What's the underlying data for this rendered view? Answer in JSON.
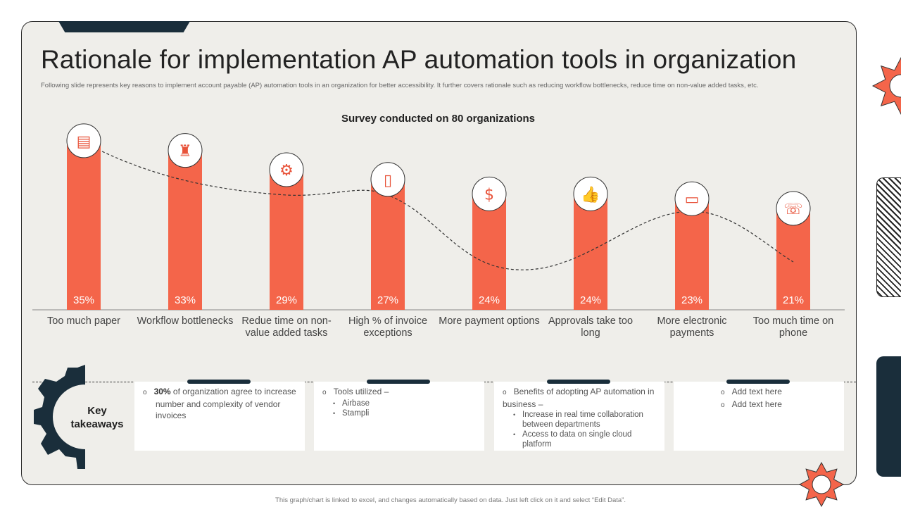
{
  "title": "Rationale for implementation AP automation tools in organization",
  "subtitle": "Following slide represents key reasons to implement  account payable (AP) automation tools in  an organization for better accessibility. It further covers rationale such as reducing workflow bottlenecks, reduce time on non-value added tasks, etc.",
  "chart_data": {
    "type": "bar",
    "title": "Survey conducted on 80 organizations",
    "categories": [
      "Too much paper",
      "Workflow bottlenecks",
      "Redue time on non-value added tasks",
      "High % of invoice exceptions",
      "More payment options",
      "Approvals take too long",
      "More electronic payments",
      "Too much time on phone"
    ],
    "values": [
      35,
      33,
      29,
      27,
      24,
      24,
      23,
      21
    ],
    "value_labels": [
      "35%",
      "33%",
      "29%",
      "27%",
      "24%",
      "24%",
      "23%",
      "21%"
    ],
    "unit": "%",
    "bar_color": "#f4654a",
    "icons": [
      "paper-stack-icon",
      "bottle-icon",
      "gear-icon",
      "invoice-phone-icon",
      "payment-icon",
      "thumbs-up-icon",
      "mobile-payment-icon",
      "phone-icon"
    ],
    "grid": false
  },
  "takeaways": {
    "label": "Key takeaways",
    "cards": [
      {
        "items": [
          {
            "bold": "30%",
            "text": " of organization agree to increase number and complexity of vendor  invoices"
          }
        ]
      },
      {
        "items": [
          {
            "text": "Tools utilized –",
            "sub": [
              "Airbase",
              "Stampli"
            ]
          }
        ]
      },
      {
        "items": [
          {
            "text": "Benefits of adopting AP automation in business –",
            "sub": [
              "Increase in real time collaboration between departments",
              "Access to data on single cloud platform"
            ]
          }
        ]
      },
      {
        "items": [
          {
            "text": "Add text here"
          },
          {
            "text": "Add text here"
          }
        ]
      }
    ]
  },
  "footer": "This graph/chart is linked to excel, and changes automatically based on data. Just left click on it and select “Edit Data”.",
  "colors": {
    "accent": "#f4654a",
    "dark": "#1a2e3b",
    "panel": "#efeeea"
  }
}
